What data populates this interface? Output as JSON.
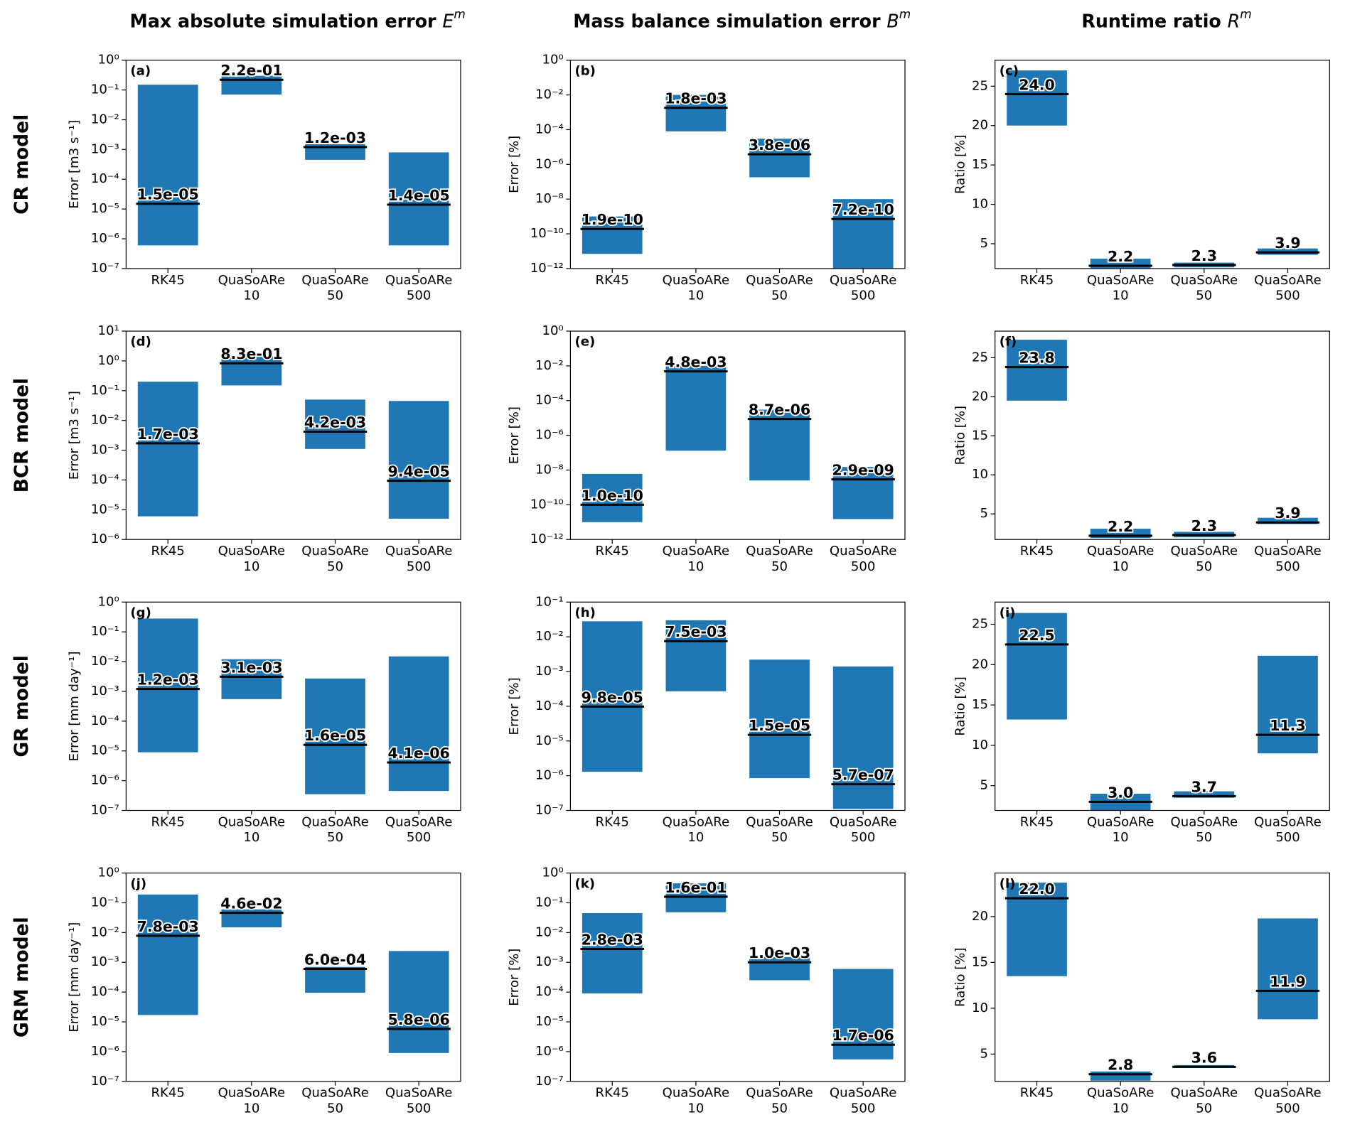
{
  "column_titles": [
    {
      "text": "Max absolute simulation error ",
      "symbol": "E",
      "superscript": "m"
    },
    {
      "text": "Mass balance simulation error ",
      "symbol": "B",
      "superscript": "m"
    },
    {
      "text": "Runtime ratio ",
      "symbol": "R",
      "superscript": "m"
    }
  ],
  "row_labels": [
    "CR model",
    "BCR model",
    "GR model",
    "GRM model"
  ],
  "chart_data": [
    {
      "type": "range-bar",
      "panel_label": "(a)",
      "ylabel": "Error [m3 s⁻¹]",
      "log": true,
      "color": "#1f77b4",
      "categories": [
        [
          "RK45"
        ],
        [
          "QuaSoARe",
          "10"
        ],
        [
          "QuaSoARe",
          "50"
        ],
        [
          "QuaSoARe",
          "500"
        ]
      ],
      "low": [
        6e-07,
        0.07,
        0.00045,
        6e-07
      ],
      "high": [
        0.15,
        0.3,
        0.0015,
        0.0008
      ],
      "median": [
        1.5e-05,
        0.22,
        0.0012,
        1.4e-05
      ],
      "value_labels": [
        "1.5e-05",
        "2.2e-01",
        "1.2e-03",
        "1.4e-05"
      ],
      "ylim": [
        1e-07,
        1
      ],
      "yticks": [
        {
          "value": 1e-07,
          "label": "10⁻⁷"
        },
        {
          "value": 1e-06,
          "label": "10⁻⁶"
        },
        {
          "value": 1e-05,
          "label": "10⁻⁵"
        },
        {
          "value": 0.0001,
          "label": "10⁻⁴"
        },
        {
          "value": 0.001,
          "label": "10⁻³"
        },
        {
          "value": 0.01,
          "label": "10⁻²"
        },
        {
          "value": 0.1,
          "label": "10⁻¹"
        },
        {
          "value": 1,
          "label": "10⁰"
        }
      ]
    },
    {
      "type": "range-bar",
      "panel_label": "(b)",
      "ylabel": "Error [%]",
      "log": true,
      "color": "#1f77b4",
      "categories": [
        [
          "RK45"
        ],
        [
          "QuaSoARe",
          "10"
        ],
        [
          "QuaSoARe",
          "50"
        ],
        [
          "QuaSoARe",
          "500"
        ]
      ],
      "low": [
        7e-12,
        8e-05,
        1.8e-07,
        1e-12
      ],
      "high": [
        1e-09,
        0.01,
        3e-05,
        1e-08
      ],
      "median": [
        1.9e-10,
        0.0018,
        3.8e-06,
        7.2e-10
      ],
      "value_labels": [
        "1.9e-10",
        "1.8e-03",
        "3.8e-06",
        "7.2e-10"
      ],
      "ylim": [
        1e-12,
        1
      ],
      "yticks": [
        {
          "value": 1e-12,
          "label": "10⁻¹²"
        },
        {
          "value": 1e-10,
          "label": "10⁻¹⁰"
        },
        {
          "value": 1e-08,
          "label": "10⁻⁸"
        },
        {
          "value": 1e-06,
          "label": "10⁻⁶"
        },
        {
          "value": 0.0001,
          "label": "10⁻⁴"
        },
        {
          "value": 0.01,
          "label": "10⁻²"
        },
        {
          "value": 1,
          "label": "10⁰"
        }
      ]
    },
    {
      "type": "range-bar",
      "panel_label": "(c)",
      "ylabel": "Ratio [%]",
      "log": false,
      "color": "#1f77b4",
      "categories": [
        [
          "RK45"
        ],
        [
          "QuaSoARe",
          "10"
        ],
        [
          "QuaSoARe",
          "50"
        ],
        [
          "QuaSoARe",
          "500"
        ]
      ],
      "low": [
        20,
        1.9,
        2.0,
        3.6
      ],
      "high": [
        27,
        3.1,
        2.6,
        4.4
      ],
      "median": [
        24,
        2.2,
        2.3,
        3.9
      ],
      "value_labels": [
        "24.0",
        "2.2",
        "2.3",
        "3.9"
      ],
      "ylim": [
        1.85,
        28.3
      ],
      "yticks": [
        5,
        10,
        15,
        20,
        25
      ]
    },
    {
      "type": "range-bar",
      "panel_label": "(d)",
      "ylabel": "Error [m3 s⁻¹]",
      "log": true,
      "color": "#1f77b4",
      "categories": [
        [
          "RK45"
        ],
        [
          "QuaSoARe",
          "10"
        ],
        [
          "QuaSoARe",
          "50"
        ],
        [
          "QuaSoARe",
          "500"
        ]
      ],
      "low": [
        6e-06,
        0.15,
        0.0011,
        5e-06
      ],
      "high": [
        0.2,
        1.5,
        0.05,
        0.045
      ],
      "median": [
        0.0017,
        0.83,
        0.0042,
        9.4e-05
      ],
      "value_labels": [
        "1.7e-03",
        "8.3e-01",
        "4.2e-03",
        "9.4e-05"
      ],
      "ylim": [
        1e-06,
        10
      ],
      "yticks": [
        {
          "value": 1e-06,
          "label": "10⁻⁶"
        },
        {
          "value": 1e-05,
          "label": "10⁻⁵"
        },
        {
          "value": 0.0001,
          "label": "10⁻⁴"
        },
        {
          "value": 0.001,
          "label": "10⁻³"
        },
        {
          "value": 0.01,
          "label": "10⁻²"
        },
        {
          "value": 0.1,
          "label": "10⁻¹"
        },
        {
          "value": 1,
          "label": "10⁰"
        },
        {
          "value": 10,
          "label": "10¹"
        }
      ]
    },
    {
      "type": "range-bar",
      "panel_label": "(e)",
      "ylabel": "Error [%]",
      "log": true,
      "color": "#1f77b4",
      "categories": [
        [
          "RK45"
        ],
        [
          "QuaSoARe",
          "10"
        ],
        [
          "QuaSoARe",
          "50"
        ],
        [
          "QuaSoARe",
          "500"
        ]
      ],
      "low": [
        1e-11,
        1.3e-07,
        2.5e-09,
        1.5e-11
      ],
      "high": [
        6e-09,
        0.01,
        3e-05,
        1.5e-08
      ],
      "median": [
        1e-10,
        0.0048,
        8.7e-06,
        2.9e-09
      ],
      "value_labels": [
        "1.0e-10",
        "4.8e-03",
        "8.7e-06",
        "2.9e-09"
      ],
      "ylim": [
        1e-12,
        1
      ],
      "yticks": [
        {
          "value": 1e-12,
          "label": "10⁻¹²"
        },
        {
          "value": 1e-10,
          "label": "10⁻¹⁰"
        },
        {
          "value": 1e-08,
          "label": "10⁻⁸"
        },
        {
          "value": 1e-06,
          "label": "10⁻⁶"
        },
        {
          "value": 0.0001,
          "label": "10⁻⁴"
        },
        {
          "value": 0.01,
          "label": "10⁻²"
        },
        {
          "value": 1,
          "label": "10⁰"
        }
      ]
    },
    {
      "type": "range-bar",
      "panel_label": "(f)",
      "ylabel": "Ratio [%]",
      "log": false,
      "color": "#1f77b4",
      "categories": [
        [
          "RK45"
        ],
        [
          "QuaSoARe",
          "10"
        ],
        [
          "QuaSoARe",
          "50"
        ],
        [
          "QuaSoARe",
          "500"
        ]
      ],
      "low": [
        19.5,
        1.9,
        2.0,
        3.7
      ],
      "high": [
        27.3,
        3.1,
        2.7,
        4.5
      ],
      "median": [
        23.8,
        2.2,
        2.3,
        3.9
      ],
      "value_labels": [
        "23.8",
        "2.2",
        "2.3",
        "3.9"
      ],
      "ylim": [
        1.72,
        28.4
      ],
      "yticks": [
        5,
        10,
        15,
        20,
        25
      ]
    },
    {
      "type": "range-bar",
      "panel_label": "(g)",
      "ylabel": "Error [mm day⁻¹]",
      "log": true,
      "color": "#1f77b4",
      "categories": [
        [
          "RK45"
        ],
        [
          "QuaSoARe",
          "10"
        ],
        [
          "QuaSoARe",
          "50"
        ],
        [
          "QuaSoARe",
          "500"
        ]
      ],
      "low": [
        9e-06,
        0.00055,
        3.5e-07,
        4.5e-07
      ],
      "high": [
        0.28,
        0.012,
        0.0027,
        0.015
      ],
      "median": [
        0.0012,
        0.0031,
        1.6e-05,
        4.1e-06
      ],
      "value_labels": [
        "1.2e-03",
        "3.1e-03",
        "1.6e-05",
        "4.1e-06"
      ],
      "ylim": [
        1e-07,
        1
      ],
      "yticks": [
        {
          "value": 1e-07,
          "label": "10⁻⁷"
        },
        {
          "value": 1e-06,
          "label": "10⁻⁶"
        },
        {
          "value": 1e-05,
          "label": "10⁻⁵"
        },
        {
          "value": 0.0001,
          "label": "10⁻⁴"
        },
        {
          "value": 0.001,
          "label": "10⁻³"
        },
        {
          "value": 0.01,
          "label": "10⁻²"
        },
        {
          "value": 0.1,
          "label": "10⁻¹"
        },
        {
          "value": 1,
          "label": "10⁰"
        }
      ]
    },
    {
      "type": "range-bar",
      "panel_label": "(h)",
      "ylabel": "Error [%]",
      "log": true,
      "color": "#1f77b4",
      "categories": [
        [
          "RK45"
        ],
        [
          "QuaSoARe",
          "10"
        ],
        [
          "QuaSoARe",
          "50"
        ],
        [
          "QuaSoARe",
          "500"
        ]
      ],
      "low": [
        1.3e-06,
        0.00027,
        8.5e-07,
        1.1e-07
      ],
      "high": [
        0.028,
        0.03,
        0.0022,
        0.0014
      ],
      "median": [
        9.8e-05,
        0.0075,
        1.5e-05,
        5.7e-07
      ],
      "value_labels": [
        "9.8e-05",
        "7.5e-03",
        "1.5e-05",
        "5.7e-07"
      ],
      "ylim": [
        1e-07,
        0.1
      ],
      "yticks": [
        {
          "value": 1e-07,
          "label": "10⁻⁷"
        },
        {
          "value": 1e-06,
          "label": "10⁻⁶"
        },
        {
          "value": 1e-05,
          "label": "10⁻⁵"
        },
        {
          "value": 0.0001,
          "label": "10⁻⁴"
        },
        {
          "value": 0.001,
          "label": "10⁻³"
        },
        {
          "value": 0.01,
          "label": "10⁻²"
        },
        {
          "value": 0.1,
          "label": "10⁻¹"
        }
      ]
    },
    {
      "type": "range-bar",
      "panel_label": "(i)",
      "ylabel": "Ratio [%]",
      "log": false,
      "color": "#1f77b4",
      "categories": [
        [
          "RK45"
        ],
        [
          "QuaSoARe",
          "10"
        ],
        [
          "QuaSoARe",
          "50"
        ],
        [
          "QuaSoARe",
          "500"
        ]
      ],
      "low": [
        13.2,
        1.95,
        3.5,
        9.0
      ],
      "high": [
        26.4,
        4.0,
        4.3,
        21.1
      ],
      "median": [
        22.5,
        3.0,
        3.7,
        11.3
      ],
      "value_labels": [
        "22.5",
        "3.0",
        "3.7",
        "11.3"
      ],
      "ylim": [
        1.93,
        27.75
      ],
      "yticks": [
        5,
        10,
        15,
        20,
        25
      ]
    },
    {
      "type": "range-bar",
      "panel_label": "(j)",
      "ylabel": "Error [mm day⁻¹]",
      "log": true,
      "color": "#1f77b4",
      "categories": [
        [
          "RK45"
        ],
        [
          "QuaSoARe",
          "10"
        ],
        [
          "QuaSoARe",
          "50"
        ],
        [
          "QuaSoARe",
          "500"
        ]
      ],
      "low": [
        1.7e-05,
        0.015,
        9.5e-05,
        9e-07
      ],
      "high": [
        0.19,
        0.06,
        0.0007,
        0.0024
      ],
      "median": [
        0.0078,
        0.046,
        0.0006,
        5.8e-06
      ],
      "value_labels": [
        "7.8e-03",
        "4.6e-02",
        "6.0e-04",
        "5.8e-06"
      ],
      "ylim": [
        1e-07,
        1
      ],
      "yticks": [
        {
          "value": 1e-07,
          "label": "10⁻⁷"
        },
        {
          "value": 1e-06,
          "label": "10⁻⁶"
        },
        {
          "value": 1e-05,
          "label": "10⁻⁵"
        },
        {
          "value": 0.0001,
          "label": "10⁻⁴"
        },
        {
          "value": 0.001,
          "label": "10⁻³"
        },
        {
          "value": 0.01,
          "label": "10⁻²"
        },
        {
          "value": 0.1,
          "label": "10⁻¹"
        },
        {
          "value": 1,
          "label": "10⁰"
        }
      ]
    },
    {
      "type": "range-bar",
      "panel_label": "(k)",
      "ylabel": "Error [%]",
      "log": true,
      "color": "#1f77b4",
      "categories": [
        [
          "RK45"
        ],
        [
          "QuaSoARe",
          "10"
        ],
        [
          "QuaSoARe",
          "50"
        ],
        [
          "QuaSoARe",
          "500"
        ]
      ],
      "low": [
        9e-05,
        0.048,
        0.00025,
        5.5e-07
      ],
      "high": [
        0.045,
        0.45,
        0.0015,
        0.0006
      ],
      "median": [
        0.0028,
        0.16,
        0.001,
        1.7e-06
      ],
      "value_labels": [
        "2.8e-03",
        "1.6e-01",
        "1.0e-03",
        "1.7e-06"
      ],
      "ylim": [
        1e-07,
        1
      ],
      "yticks": [
        {
          "value": 1e-07,
          "label": "10⁻⁷"
        },
        {
          "value": 1e-06,
          "label": "10⁻⁶"
        },
        {
          "value": 1e-05,
          "label": "10⁻⁵"
        },
        {
          "value": 0.0001,
          "label": "10⁻⁴"
        },
        {
          "value": 0.001,
          "label": "10⁻³"
        },
        {
          "value": 0.01,
          "label": "10⁻²"
        },
        {
          "value": 0.1,
          "label": "10⁻¹"
        },
        {
          "value": 1,
          "label": "10⁰"
        }
      ]
    },
    {
      "type": "range-bar",
      "panel_label": "(l)",
      "ylabel": "Ratio [%]",
      "log": false,
      "color": "#1f77b4",
      "categories": [
        [
          "RK45"
        ],
        [
          "QuaSoARe",
          "10"
        ],
        [
          "QuaSoARe",
          "50"
        ],
        [
          "QuaSoARe",
          "500"
        ]
      ],
      "low": [
        13.5,
        2.1,
        3.5,
        8.8
      ],
      "high": [
        23.7,
        3.1,
        3.8,
        19.8
      ],
      "median": [
        22,
        2.8,
        3.6,
        11.9
      ],
      "value_labels": [
        "22.0",
        "2.8",
        "3.6",
        "11.9"
      ],
      "ylim": [
        2.02,
        24.75
      ],
      "yticks": [
        5,
        10,
        15,
        20
      ]
    }
  ]
}
